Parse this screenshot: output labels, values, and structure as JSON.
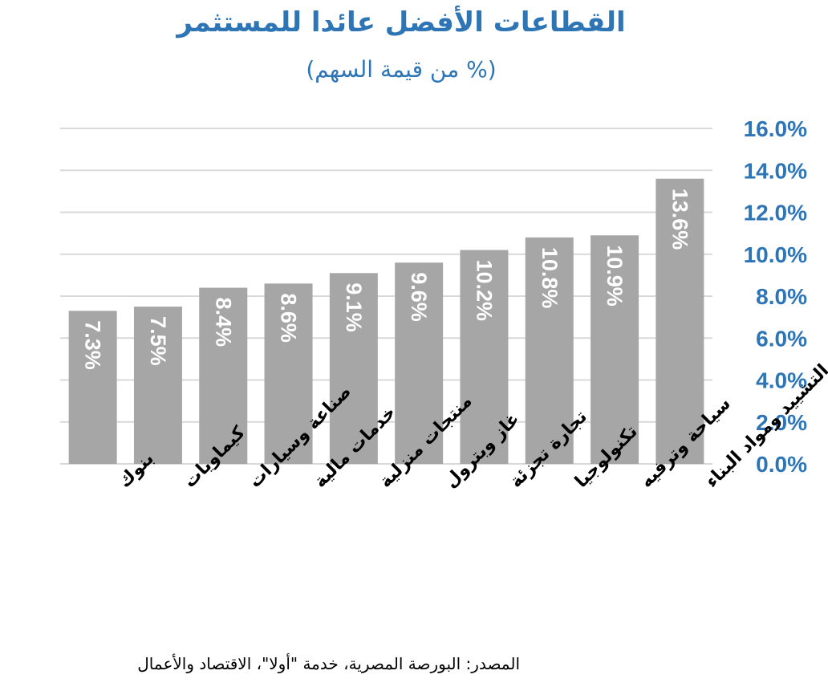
{
  "chart_data": {
    "type": "bar",
    "title": "القطاعات الأفضل عائدا للمستثمر",
    "subtitle": "(% من قيمة السهم)",
    "categories": [
      "بنوك",
      "كيماويات",
      "صناعة وسيارات",
      "خدمات مالية",
      "منتجات منزلية",
      "غاز وبترول",
      "تجارة تجزئة",
      "تكنولوجيا",
      "سياحة وترفيه",
      "التشييد ومواد البناء"
    ],
    "values": [
      7.3,
      7.5,
      8.4,
      8.6,
      9.1,
      9.6,
      10.2,
      10.8,
      10.9,
      13.6
    ],
    "data_labels": [
      "7.3%",
      "7.5%",
      "8.4%",
      "8.6%",
      "9.1%",
      "9.6%",
      "10.2%",
      "10.8%",
      "10.9%",
      "13.6%"
    ],
    "y_ticks": [
      0,
      2,
      4,
      6,
      8,
      10,
      12,
      14,
      16
    ],
    "y_tick_labels": [
      "0.0%",
      "2.0%",
      "4.0%",
      "6.0%",
      "8.0%",
      "10.0%",
      "12.0%",
      "14.0%",
      "16.0%"
    ],
    "ylim": [
      0,
      16
    ],
    "y_axis_side": "right",
    "grid": true,
    "xlabel": "",
    "ylabel": "",
    "colors": {
      "bar": "#a6a6a6",
      "title": "#2e75b6",
      "tick": "#2e75b6",
      "grid": "#d9d9d9",
      "label": "#ffffff"
    }
  },
  "source": "المصدر: البورصة المصرية، خدمة \"أولا\"، الاقتصاد والأعمال"
}
